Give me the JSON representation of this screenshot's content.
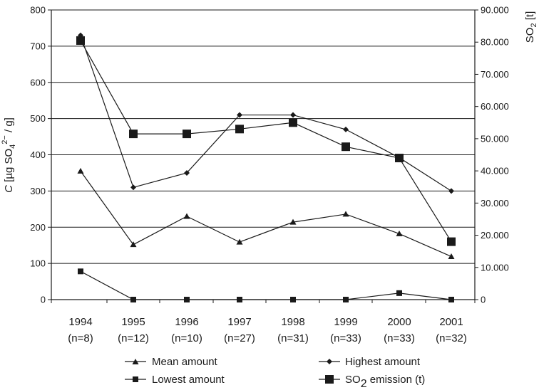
{
  "chart_data": {
    "type": "line",
    "categories": [
      "1994",
      "1995",
      "1996",
      "1997",
      "1998",
      "1999",
      "2000",
      "2001"
    ],
    "category_sublabels": [
      "(n=8)",
      "(n=12)",
      "(n=10)",
      "(n=27)",
      "(n=31)",
      "(n=33)",
      "(n=33)",
      "(n=32)"
    ],
    "y_left": {
      "label_italic": "C",
      "label_rest": " [µg SO",
      "label_sub": "4",
      "label_sup": "2−",
      "label_end": " / g]",
      "ylim": [
        0,
        800
      ],
      "ticks": [
        "0",
        "100",
        "200",
        "300",
        "400",
        "500",
        "600",
        "700",
        "800"
      ]
    },
    "y_right": {
      "label_main": "SO",
      "label_sub": "2",
      "label_end": " [t]",
      "ylim": [
        0,
        90000
      ],
      "ticks": [
        "0",
        "10.000",
        "20.000",
        "30.000",
        "40.000",
        "50.000",
        "60.000",
        "70.000",
        "80.000",
        "90.000"
      ]
    },
    "grid": true,
    "legend_position": "bottom",
    "series": [
      {
        "name": "Mean amount",
        "axis": "left",
        "marker": "triangle",
        "values": [
          355,
          152,
          230,
          159,
          214,
          236,
          182,
          119
        ]
      },
      {
        "name": "Highest amount",
        "axis": "left",
        "marker": "diamond",
        "values": [
          730,
          310,
          350,
          510,
          510,
          470,
          392,
          300
        ]
      },
      {
        "name": "Lowest amount",
        "axis": "left",
        "marker": "square-small",
        "values": [
          78,
          0,
          0,
          0,
          0,
          0,
          18,
          0
        ]
      },
      {
        "name_main": "SO",
        "name_sub": "2",
        "name_end": " emission (t)",
        "axis": "right",
        "marker": "square-large",
        "values": [
          80500,
          51500,
          51500,
          53000,
          55000,
          47500,
          44000,
          18000
        ]
      }
    ],
    "color": "#1a1a1a"
  }
}
